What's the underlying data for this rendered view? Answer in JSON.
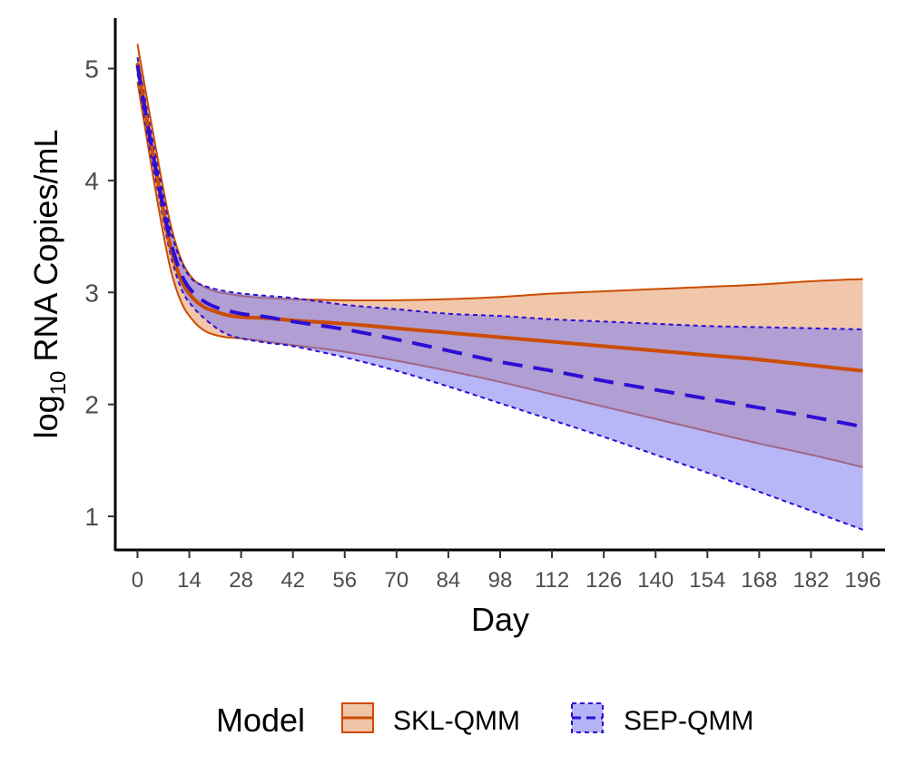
{
  "chart_data": {
    "type": "line",
    "title": "",
    "xlabel": "Day",
    "ylabel": {
      "prefix": "log",
      "subscript": "10",
      "rest": " RNA Copies/mL"
    },
    "xlim": [
      -6,
      202
    ],
    "ylim": [
      0.7,
      5.45
    ],
    "x_ticks": [
      0,
      14,
      28,
      42,
      56,
      70,
      84,
      98,
      112,
      126,
      140,
      154,
      168,
      182,
      196
    ],
    "x_tick_labels": [
      "0",
      "14",
      "28",
      "42",
      "56",
      "70",
      "84",
      "98",
      "112",
      "126",
      "140",
      "154",
      "168",
      "182",
      "196"
    ],
    "y_ticks": [
      1,
      2,
      3,
      4,
      5
    ],
    "y_tick_labels": [
      "1",
      "2",
      "3",
      "4",
      "5"
    ],
    "grid": false,
    "x": [
      0,
      3,
      6,
      9,
      12,
      15,
      18,
      21,
      24,
      28,
      35,
      42,
      56,
      70,
      84,
      98,
      112,
      126,
      140,
      154,
      168,
      182,
      196
    ],
    "series": [
      {
        "name": "SKL-QMM",
        "color": "#cc4c02",
        "fill": "#f0c4a6",
        "line_style": "solid",
        "mean": [
          5.05,
          4.45,
          3.9,
          3.4,
          3.1,
          2.95,
          2.87,
          2.83,
          2.8,
          2.78,
          2.77,
          2.75,
          2.72,
          2.68,
          2.64,
          2.6,
          2.56,
          2.52,
          2.48,
          2.44,
          2.4,
          2.35,
          2.3
        ],
        "upper": [
          5.22,
          4.65,
          4.1,
          3.6,
          3.28,
          3.12,
          3.05,
          3.01,
          2.99,
          2.97,
          2.95,
          2.94,
          2.93,
          2.93,
          2.94,
          2.96,
          2.99,
          3.01,
          3.03,
          3.05,
          3.07,
          3.1,
          3.12
        ],
        "lower": [
          4.88,
          4.28,
          3.7,
          3.2,
          2.9,
          2.75,
          2.66,
          2.62,
          2.6,
          2.59,
          2.56,
          2.53,
          2.47,
          2.39,
          2.3,
          2.2,
          2.09,
          1.98,
          1.87,
          1.76,
          1.65,
          1.55,
          1.44
        ]
      },
      {
        "name": "SEP-QMM",
        "color": "#2d0ed4",
        "fill": "#7b7cf3",
        "line_style": "dashed",
        "mean": [
          5.03,
          4.45,
          3.92,
          3.45,
          3.15,
          3.0,
          2.92,
          2.87,
          2.84,
          2.81,
          2.78,
          2.74,
          2.67,
          2.58,
          2.48,
          2.38,
          2.3,
          2.21,
          2.13,
          2.05,
          1.97,
          1.89,
          1.8
        ],
        "upper": [
          5.1,
          4.55,
          4.02,
          3.55,
          3.26,
          3.11,
          3.06,
          3.03,
          3.01,
          2.99,
          2.97,
          2.95,
          2.89,
          2.85,
          2.81,
          2.79,
          2.76,
          2.74,
          2.72,
          2.7,
          2.69,
          2.68,
          2.67
        ],
        "lower": [
          4.96,
          4.35,
          3.82,
          3.33,
          3.02,
          2.87,
          2.77,
          2.69,
          2.63,
          2.59,
          2.55,
          2.52,
          2.42,
          2.3,
          2.16,
          2.01,
          1.86,
          1.71,
          1.55,
          1.39,
          1.22,
          1.05,
          0.88
        ]
      }
    ],
    "legend": {
      "title": "Model",
      "placement": "bottom",
      "entries": [
        "SKL-QMM",
        "SEP-QMM"
      ]
    }
  }
}
